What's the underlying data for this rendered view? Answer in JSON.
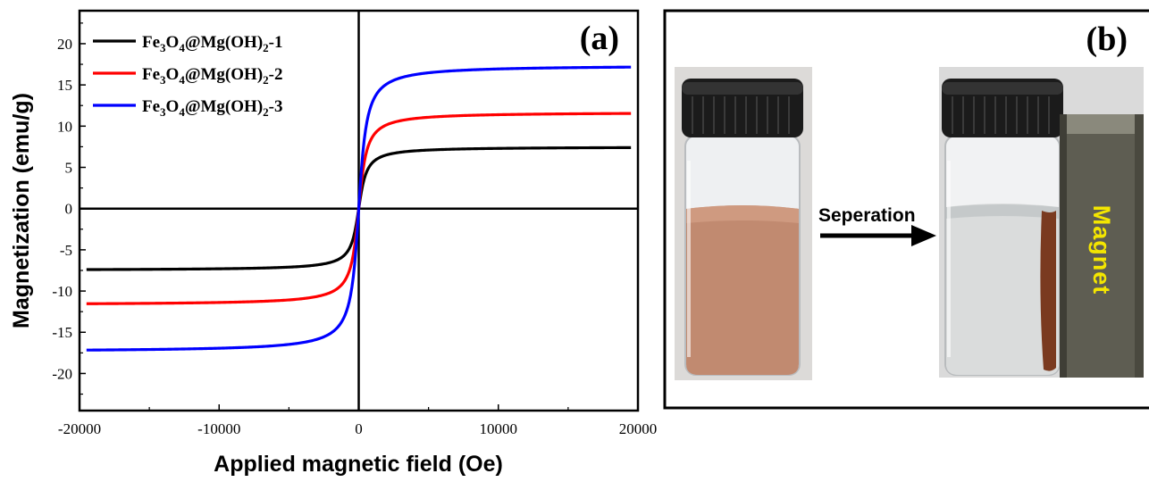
{
  "chart_data": {
    "type": "line",
    "panel_label": "(a)",
    "xlabel": "Applied magnetic field (Oe)",
    "ylabel": "Magnetization (emu/g)",
    "xlim": [
      -20000,
      20000
    ],
    "ylim": [
      -24.5,
      24
    ],
    "xticks": [
      -20000,
      -10000,
      0,
      10000,
      20000
    ],
    "yticks": [
      -20,
      -15,
      -10,
      -5,
      0,
      5,
      10,
      15,
      20
    ],
    "legend_placement": "top-left",
    "grid": false,
    "series": [
      {
        "name_parts": [
          "Fe",
          "3",
          "O",
          "4",
          "@Mg(OH)",
          "2",
          "-1"
        ],
        "ms": 7.5,
        "color": "#000000",
        "x_range": [
          -19500,
          19500
        ]
      },
      {
        "name_parts": [
          "Fe",
          "3",
          "O",
          "4",
          "@Mg(OH)",
          "2",
          "-2"
        ],
        "ms": 11.7,
        "color": "#ff0000",
        "x_range": [
          -19500,
          19500
        ]
      },
      {
        "name_parts": [
          "Fe",
          "3",
          "O",
          "4",
          "@Mg(OH)",
          "2",
          "-3"
        ],
        "ms": 17.4,
        "color": "#0000ff",
        "x_range": [
          -19500,
          19500
        ]
      }
    ]
  },
  "photo_panel": {
    "panel_label": "(b)",
    "arrow_label": "Seperation",
    "magnet_label": "Magnet"
  }
}
